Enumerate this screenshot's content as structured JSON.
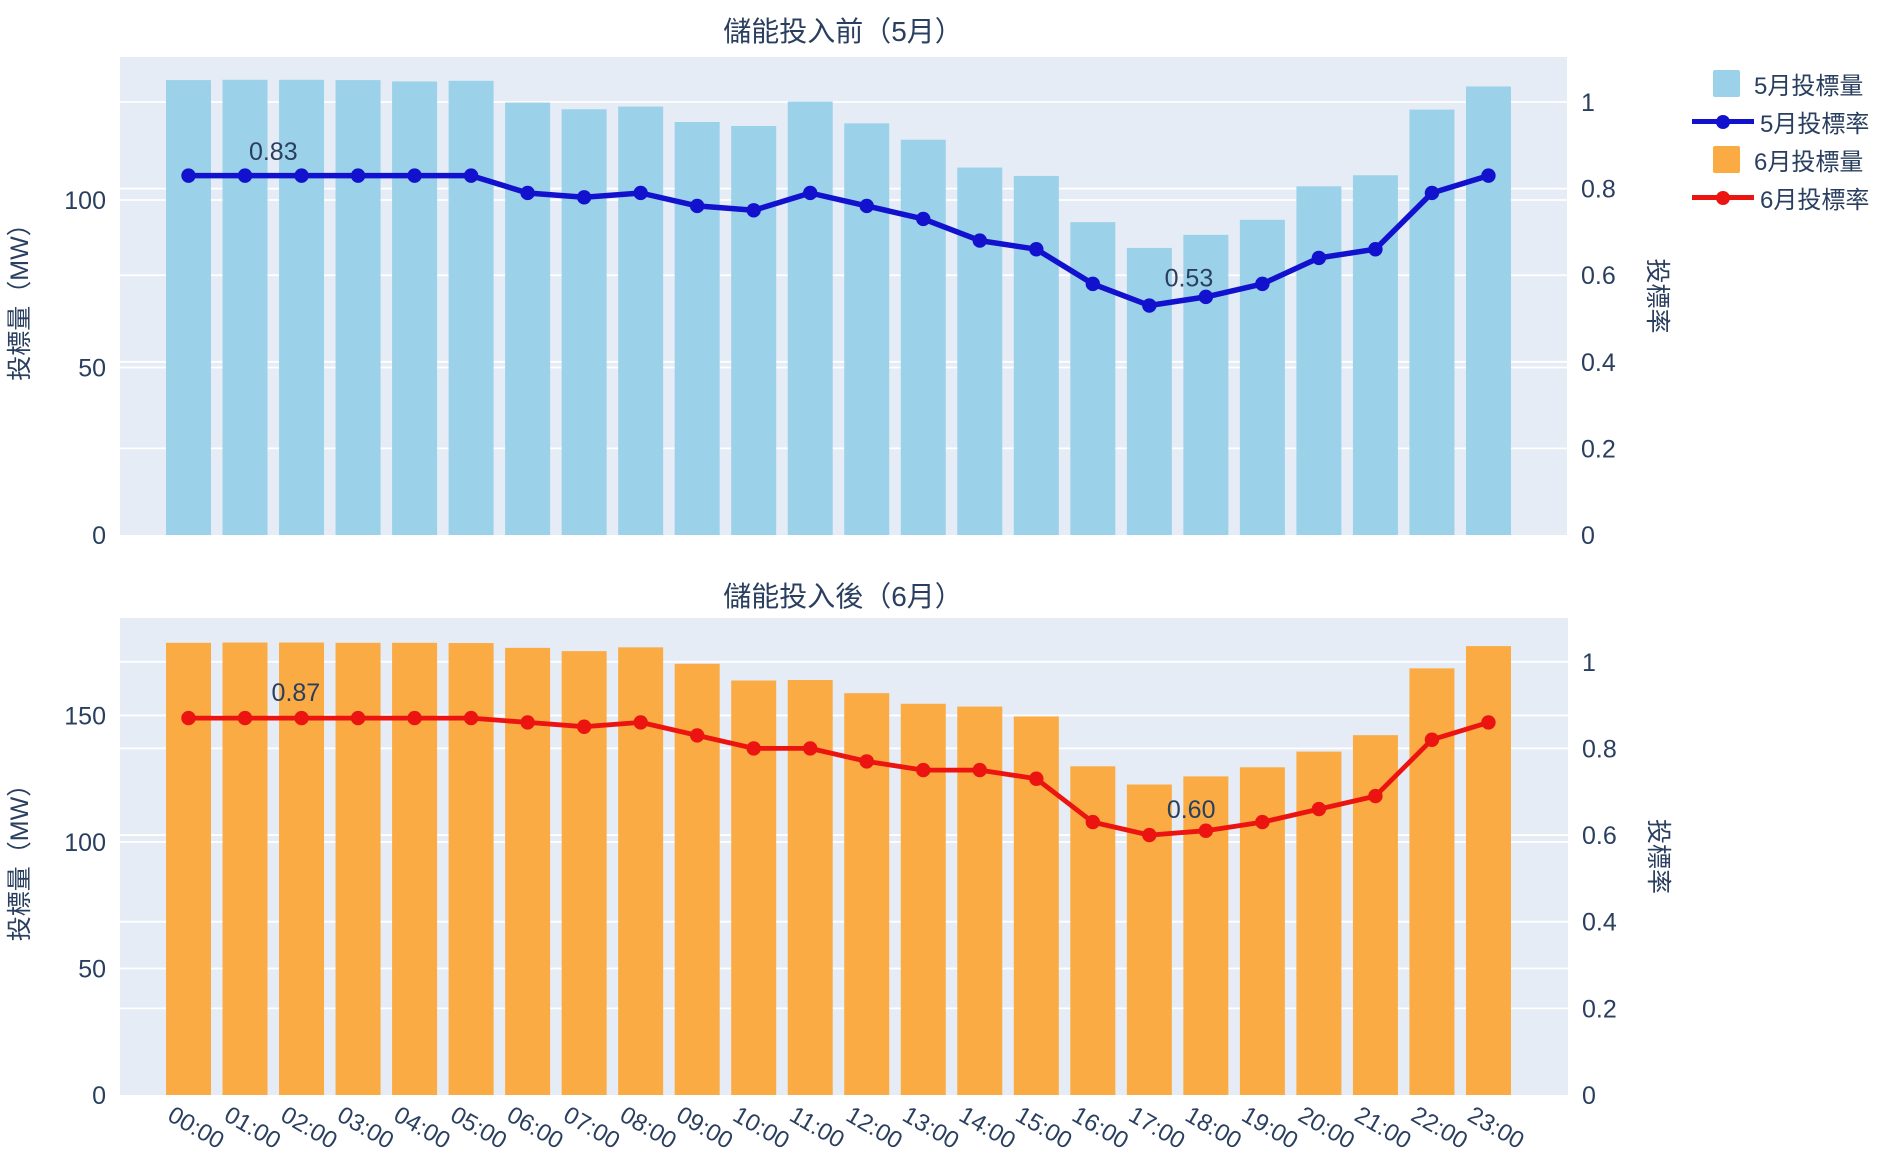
{
  "page": {
    "background": "#ffffff",
    "plot_background": "#e5ecf6",
    "grid_color": "#ffffff",
    "text_color": "#2a3f5f"
  },
  "legend": {
    "items": [
      {
        "label": "5月投標量",
        "type": "square",
        "color": "#9CD1EA"
      },
      {
        "label": "5月投標率",
        "type": "line",
        "color": "#1212CE"
      },
      {
        "label": "6月投標量",
        "type": "square",
        "color": "#FAAB43"
      },
      {
        "label": "6月投標率",
        "type": "line",
        "color": "#EB1410"
      }
    ]
  },
  "chart_data": [
    {
      "type": "bar",
      "title": "儲能投入前（5月）",
      "x_categories": [
        "00:00",
        "01:00",
        "02:00",
        "03:00",
        "04:00",
        "05:00",
        "06:00",
        "07:00",
        "08:00",
        "09:00",
        "10:00",
        "11:00",
        "12:00",
        "13:00",
        "14:00",
        "15:00",
        "16:00",
        "17:00",
        "18:00",
        "19:00",
        "20:00",
        "21:00",
        "22:00",
        "23:00"
      ],
      "show_x_labels": false,
      "series": [
        {
          "name": "5月投標量",
          "type": "bar",
          "axis": "left",
          "color": "#9CD1EA",
          "values": [
            135.8,
            135.9,
            135.9,
            135.8,
            135.4,
            135.6,
            129.1,
            127.1,
            127.9,
            123.3,
            122.1,
            129.4,
            122.9,
            118.0,
            109.7,
            107.2,
            93.4,
            85.7,
            89.6,
            94.1,
            104.1,
            107.4,
            127.0,
            133.9
          ]
        },
        {
          "name": "5月投標率",
          "type": "line",
          "axis": "right",
          "color": "#1212CE",
          "values": [
            0.83,
            0.83,
            0.83,
            0.83,
            0.83,
            0.83,
            0.79,
            0.78,
            0.79,
            0.76,
            0.75,
            0.79,
            0.76,
            0.73,
            0.68,
            0.66,
            0.58,
            0.53,
            0.55,
            0.58,
            0.64,
            0.66,
            0.79,
            0.83
          ]
        }
      ],
      "left_axis": {
        "title": "投標量（MW）",
        "ticks": [
          0,
          50,
          100
        ],
        "range": [
          0,
          142.7
        ]
      },
      "right_axis": {
        "title": "投標率",
        "ticks": [
          0,
          0.2,
          0.4,
          0.6,
          0.8,
          1
        ],
        "range": [
          0,
          1.104
        ]
      },
      "annotations": [
        {
          "text": "0.83",
          "x": 1.5,
          "y": 0.885
        },
        {
          "text": "0.53",
          "x": 17.7,
          "y": 0.592
        }
      ]
    },
    {
      "type": "bar",
      "title": "儲能投入後（6月）",
      "x_categories": [
        "00:00",
        "01:00",
        "02:00",
        "03:00",
        "04:00",
        "05:00",
        "06:00",
        "07:00",
        "08:00",
        "09:00",
        "10:00",
        "11:00",
        "12:00",
        "13:00",
        "14:00",
        "15:00",
        "16:00",
        "17:00",
        "18:00",
        "19:00",
        "20:00",
        "21:00",
        "22:00",
        "23:00"
      ],
      "show_x_labels": true,
      "series": [
        {
          "name": "6月投標量",
          "type": "bar",
          "axis": "left",
          "color": "#FAAB43",
          "values": [
            178.7,
            178.8,
            178.8,
            178.7,
            178.7,
            178.6,
            176.7,
            175.4,
            176.9,
            170.4,
            163.8,
            164.0,
            158.8,
            154.6,
            153.5,
            149.6,
            129.9,
            122.7,
            125.9,
            129.5,
            135.7,
            142.2,
            168.6,
            177.4
          ]
        },
        {
          "name": "6月投標率",
          "type": "line",
          "axis": "right",
          "color": "#EB1410",
          "values": [
            0.87,
            0.87,
            0.87,
            0.87,
            0.87,
            0.87,
            0.86,
            0.85,
            0.86,
            0.83,
            0.8,
            0.8,
            0.77,
            0.75,
            0.75,
            0.73,
            0.63,
            0.6,
            0.61,
            0.63,
            0.66,
            0.69,
            0.82,
            0.86
          ]
        }
      ],
      "left_axis": {
        "title": "投標量（MW）",
        "ticks": [
          0,
          50,
          100,
          150
        ],
        "range": [
          0,
          188.5
        ]
      },
      "right_axis": {
        "title": "投標率",
        "ticks": [
          0,
          0.2,
          0.4,
          0.6,
          0.8,
          1
        ],
        "range": [
          0,
          1.101
        ]
      },
      "annotations": [
        {
          "text": "0.87",
          "x": 1.9,
          "y": 0.928
        },
        {
          "text": "0.60",
          "x": 17.74,
          "y": 0.658
        }
      ]
    }
  ]
}
